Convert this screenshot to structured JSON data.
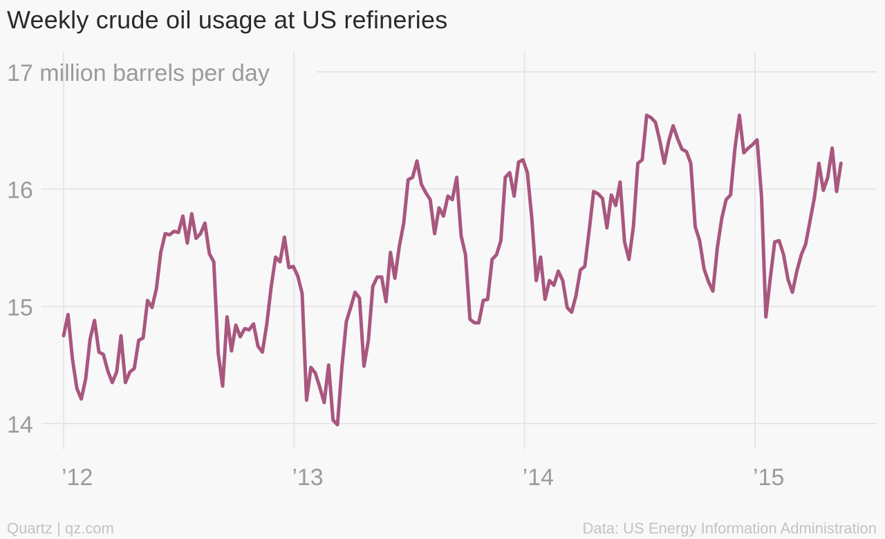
{
  "title": "Weekly crude oil usage at US refineries",
  "footer": {
    "source_left": "Quartz | qz.com",
    "source_right": "Data: US Energy Information Administration"
  },
  "chart_data": {
    "type": "line",
    "title": "Weekly crude oil usage at US refineries",
    "ylabel": "",
    "xlabel": "",
    "unit_label": "million barrels per day",
    "ylim": [
      14,
      17
    ],
    "xlim": [
      2012.0,
      2015.55
    ],
    "grid": true,
    "y_ticks": [
      {
        "value": 17,
        "label": "17 million barrels per day"
      },
      {
        "value": 16,
        "label": "16"
      },
      {
        "value": 15,
        "label": "15"
      },
      {
        "value": 14,
        "label": "14"
      }
    ],
    "x_ticks": [
      {
        "value": 2012,
        "label": "’12"
      },
      {
        "value": 2013,
        "label": "’13"
      },
      {
        "value": 2014,
        "label": "’14"
      },
      {
        "value": 2015,
        "label": "’15"
      }
    ],
    "line_color": "#a8577f",
    "series": [
      {
        "name": "",
        "start": 2012.0,
        "step_years": 0.019165,
        "values": [
          14.75,
          14.93,
          14.55,
          14.3,
          14.21,
          14.38,
          14.72,
          14.88,
          14.61,
          14.59,
          14.45,
          14.35,
          14.44,
          14.75,
          14.35,
          14.44,
          14.47,
          14.71,
          14.73,
          15.05,
          14.99,
          15.15,
          15.46,
          15.62,
          15.61,
          15.64,
          15.63,
          15.77,
          15.54,
          15.79,
          15.58,
          15.62,
          15.71,
          15.45,
          15.38,
          14.6,
          14.32,
          14.91,
          14.62,
          14.84,
          14.74,
          14.81,
          14.8,
          14.85,
          14.66,
          14.61,
          14.85,
          15.17,
          15.42,
          15.38,
          15.59,
          15.33,
          15.34,
          15.26,
          15.11,
          14.2,
          14.48,
          14.43,
          14.31,
          14.18,
          14.5,
          14.03,
          13.99,
          14.48,
          14.87,
          14.99,
          15.12,
          15.07,
          14.49,
          14.71,
          15.17,
          15.25,
          15.25,
          15.04,
          15.46,
          15.24,
          15.51,
          15.71,
          16.08,
          16.1,
          16.24,
          16.04,
          15.97,
          15.91,
          15.62,
          15.84,
          15.77,
          15.94,
          15.91,
          16.1,
          15.6,
          15.44,
          14.89,
          14.86,
          14.86,
          15.05,
          15.06,
          15.4,
          15.44,
          15.56,
          16.1,
          16.14,
          15.94,
          16.23,
          16.25,
          16.14,
          15.75,
          15.22,
          15.42,
          15.06,
          15.22,
          15.18,
          15.3,
          15.22,
          14.99,
          14.95,
          15.09,
          15.31,
          15.34,
          15.65,
          15.98,
          15.96,
          15.92,
          15.67,
          15.95,
          15.86,
          16.06,
          15.55,
          15.4,
          15.68,
          16.22,
          16.25,
          16.63,
          16.61,
          16.57,
          16.41,
          16.22,
          16.41,
          16.54,
          16.43,
          16.34,
          16.32,
          16.22,
          15.68,
          15.56,
          15.32,
          15.21,
          15.13,
          15.5,
          15.75,
          15.91,
          15.95,
          16.35,
          16.63,
          16.31,
          16.35,
          16.38,
          16.42,
          15.94,
          14.91,
          15.24,
          15.55,
          15.56,
          15.44,
          15.23,
          15.12,
          15.3,
          15.44,
          15.53,
          15.73,
          15.93,
          16.22,
          15.99,
          16.1,
          16.35,
          15.98,
          16.22
        ]
      }
    ]
  }
}
